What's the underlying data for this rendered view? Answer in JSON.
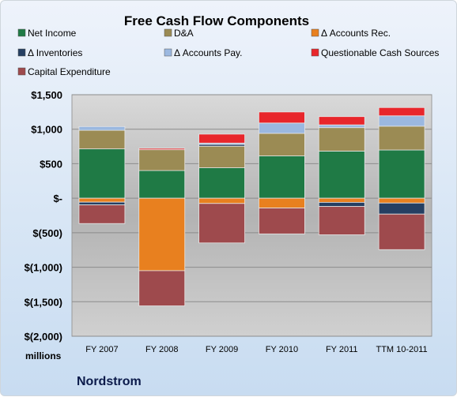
{
  "chart_data": {
    "type": "bar",
    "stacked": true,
    "title": "Free Cash Flow Components",
    "unit_label": "millions",
    "company": "Nordstrom",
    "categories": [
      "FY 2007",
      "FY 2008",
      "FY 2009",
      "FY 2010",
      "FY 2011",
      "TTM 10-2011"
    ],
    "ylim": [
      -2000,
      1500
    ],
    "yticks": [
      1500,
      1000,
      500,
      0,
      -500,
      -1000,
      -1500,
      -2000
    ],
    "ytick_labels": [
      "$1,500",
      "$1,000",
      "$500",
      "$-",
      "$(500)",
      "$(1,000)",
      "$(1,500)",
      "$(2,000)"
    ],
    "grid": true,
    "legend_position": "top",
    "series": [
      {
        "name": "Net Income",
        "color": "#1f7a45",
        "values": [
          715,
          401,
          441,
          613,
          683,
          699
        ]
      },
      {
        "name": "D&A",
        "color": "#9b8b54",
        "values": [
          269,
          302,
          313,
          327,
          340,
          345
        ]
      },
      {
        "name": "Δ Accounts Rec.",
        "color": "#e8801f",
        "values": [
          -57,
          -1050,
          -76,
          -142,
          -60,
          -70
        ]
      },
      {
        "name": "Δ Inventories",
        "color": "#253f62",
        "values": [
          -40,
          0,
          25,
          0,
          -60,
          -160
        ]
      },
      {
        "name": "Δ Accounts Pay.",
        "color": "#9bb8e0",
        "values": [
          55,
          0,
          20,
          150,
          40,
          150
        ]
      },
      {
        "name": "Questionable Cash Sources",
        "color": "#e8262b",
        "values": [
          0,
          20,
          130,
          160,
          120,
          120
        ]
      },
      {
        "name": "Capital Expenditure",
        "color": "#9e4a4d",
        "values": [
          -270,
          -510,
          -572,
          -375,
          -410,
          -515
        ]
      }
    ]
  }
}
